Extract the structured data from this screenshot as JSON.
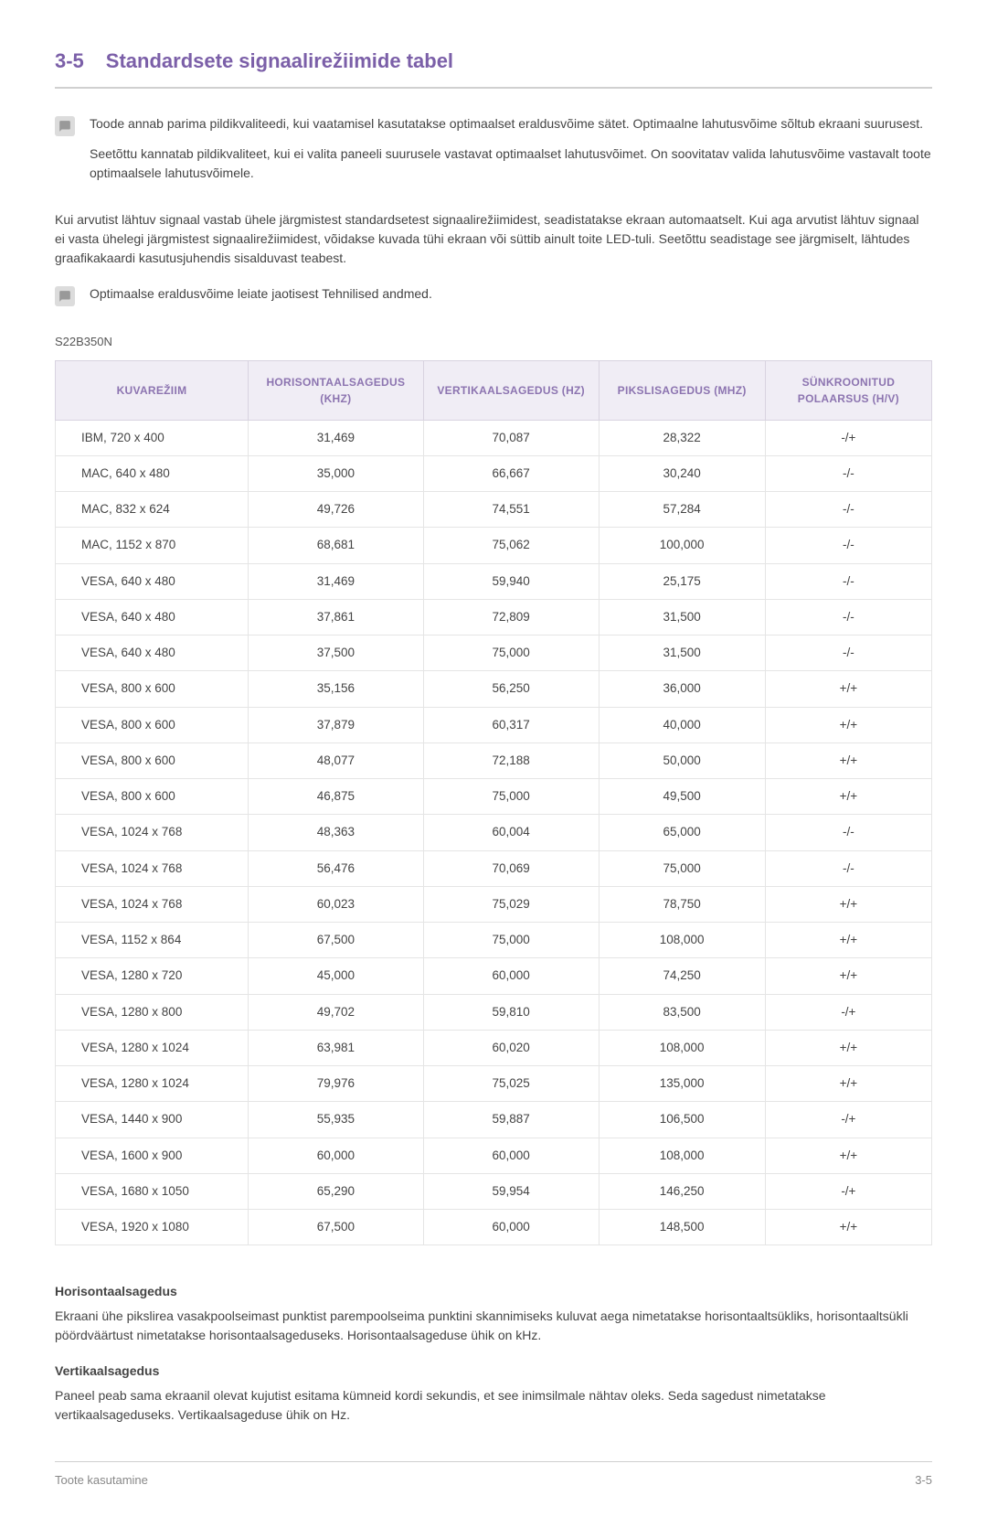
{
  "section": {
    "number": "3-5",
    "title": "Standardsete signaalirežiimide tabel"
  },
  "info1": {
    "p1": "Toode annab parima pildikvaliteedi, kui vaatamisel kasutatakse optimaalset eraldusvõime sätet. Optimaalne lahutusvõime sõltub ekraani suurusest.",
    "p2": "Seetõttu kannatab pildikvaliteet, kui ei valita paneeli suurusele vastavat optimaalset lahutusvõimet. On soovitatav valida lahutusvõime vastavalt toote optimaalsele lahutusvõimele."
  },
  "bodyPara": "Kui arvutist lähtuv signaal vastab ühele järgmistest standardsetest signaalirežiimidest, seadistatakse ekraan automaatselt. Kui aga arvutist lähtuv signaal ei vasta ühelegi järgmistest signaalirežiimidest, võidakse kuvada tühi ekraan või süttib ainult toite LED-tuli. Seetõttu seadistage see järgmiselt, lähtudes graafikakaardi kasutusjuhendis sisalduvast teabest.",
  "info2": "Optimaalse eraldusvõime leiate jaotisest Tehnilised andmed.",
  "model": "S22B350N",
  "table": {
    "headers": {
      "c1": "KUVAREŽIIM",
      "c2": "HORISONTAALSAGEDUS (KHZ)",
      "c3": "VERTIKAALSAGEDUS (HZ)",
      "c4": "PIKSLISAGEDUS (MHZ)",
      "c5": "SÜNKROONITUD POLAARSUS (H/V)"
    },
    "rows": [
      {
        "mode": "IBM, 720 x 400",
        "hf": "31,469",
        "vf": "70,087",
        "pc": "28,322",
        "sp": "-/+"
      },
      {
        "mode": "MAC, 640 x 480",
        "hf": "35,000",
        "vf": "66,667",
        "pc": "30,240",
        "sp": "-/-"
      },
      {
        "mode": "MAC, 832 x 624",
        "hf": "49,726",
        "vf": "74,551",
        "pc": "57,284",
        "sp": "-/-"
      },
      {
        "mode": "MAC, 1152 x 870",
        "hf": "68,681",
        "vf": "75,062",
        "pc": "100,000",
        "sp": "-/-"
      },
      {
        "mode": "VESA, 640 x 480",
        "hf": "31,469",
        "vf": "59,940",
        "pc": "25,175",
        "sp": "-/-"
      },
      {
        "mode": "VESA, 640 x 480",
        "hf": "37,861",
        "vf": "72,809",
        "pc": "31,500",
        "sp": "-/-"
      },
      {
        "mode": "VESA, 640 x 480",
        "hf": "37,500",
        "vf": "75,000",
        "pc": "31,500",
        "sp": "-/-"
      },
      {
        "mode": "VESA, 800 x 600",
        "hf": "35,156",
        "vf": "56,250",
        "pc": "36,000",
        "sp": "+/+"
      },
      {
        "mode": "VESA, 800 x 600",
        "hf": "37,879",
        "vf": "60,317",
        "pc": "40,000",
        "sp": "+/+"
      },
      {
        "mode": "VESA, 800 x 600",
        "hf": "48,077",
        "vf": "72,188",
        "pc": "50,000",
        "sp": "+/+"
      },
      {
        "mode": "VESA, 800 x 600",
        "hf": "46,875",
        "vf": "75,000",
        "pc": "49,500",
        "sp": "+/+"
      },
      {
        "mode": "VESA, 1024 x 768",
        "hf": "48,363",
        "vf": "60,004",
        "pc": "65,000",
        "sp": "-/-"
      },
      {
        "mode": "VESA, 1024 x 768",
        "hf": "56,476",
        "vf": "70,069",
        "pc": "75,000",
        "sp": "-/-"
      },
      {
        "mode": "VESA, 1024 x 768",
        "hf": "60,023",
        "vf": "75,029",
        "pc": "78,750",
        "sp": "+/+"
      },
      {
        "mode": "VESA, 1152 x 864",
        "hf": "67,500",
        "vf": "75,000",
        "pc": "108,000",
        "sp": "+/+"
      },
      {
        "mode": "VESA, 1280 x 720",
        "hf": "45,000",
        "vf": "60,000",
        "pc": "74,250",
        "sp": "+/+"
      },
      {
        "mode": "VESA, 1280 x 800",
        "hf": "49,702",
        "vf": "59,810",
        "pc": "83,500",
        "sp": "-/+"
      },
      {
        "mode": "VESA, 1280 x 1024",
        "hf": "63,981",
        "vf": "60,020",
        "pc": "108,000",
        "sp": "+/+"
      },
      {
        "mode": "VESA, 1280 x 1024",
        "hf": "79,976",
        "vf": "75,025",
        "pc": "135,000",
        "sp": "+/+"
      },
      {
        "mode": "VESA, 1440 x 900",
        "hf": "55,935",
        "vf": "59,887",
        "pc": "106,500",
        "sp": "-/+"
      },
      {
        "mode": "VESA, 1600 x 900",
        "hf": "60,000",
        "vf": "60,000",
        "pc": "108,000",
        "sp": "+/+"
      },
      {
        "mode": "VESA, 1680 x 1050",
        "hf": "65,290",
        "vf": "59,954",
        "pc": "146,250",
        "sp": "-/+"
      },
      {
        "mode": "VESA, 1920 x 1080",
        "hf": "67,500",
        "vf": "60,000",
        "pc": "148,500",
        "sp": "+/+"
      }
    ],
    "colWidths": [
      "22%",
      "20%",
      "20%",
      "19%",
      "19%"
    ]
  },
  "defs": {
    "h1": "Horisontaalsagedus",
    "t1": "Ekraani ühe pikslirea vasakpoolseimast punktist parempoolseima punktini skannimiseks kuluvat aega nimetatakse horisontaaltsükliks, horisontaaltsükli pöördväärtust nimetatakse horisontaalsageduseks. Horisontaalsageduse ühik on kHz.",
    "h2": "Vertikaalsagedus",
    "t2": "Paneel peab sama ekraanil olevat kujutist esitama kümneid kordi sekundis, et see inimsilmale nähtav oleks. Seda sagedust nimetatakse vertikaalsageduseks. Vertikaalsageduse ühik on Hz."
  },
  "footer": {
    "left": "Toote kasutamine",
    "right": "3-5"
  }
}
